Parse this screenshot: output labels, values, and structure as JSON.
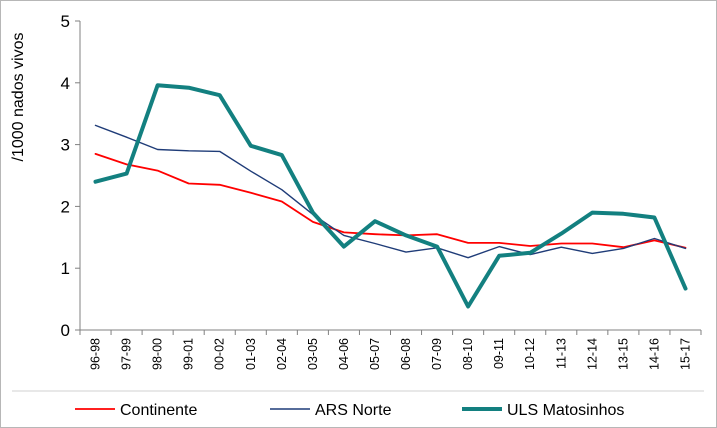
{
  "chart_data": {
    "type": "line",
    "title": "",
    "xlabel": "",
    "ylabel": "/1000 nados vivos",
    "ylim": [
      0,
      5
    ],
    "yticks": [
      0,
      1,
      2,
      3,
      4,
      5
    ],
    "grid": false,
    "legend_position": "bottom",
    "categories": [
      "96-98",
      "97-99",
      "98-00",
      "99-01",
      "00-02",
      "01-03",
      "02-04",
      "03-05",
      "04-06",
      "05-07",
      "06-08",
      "07-09",
      "08-10",
      "09-11",
      "10-12",
      "11-13",
      "12-14",
      "13-15",
      "14-16",
      "15-17"
    ],
    "series": [
      {
        "name": "Continente",
        "color": "#ff0000",
        "line_width": 1.8,
        "values": [
          2.85,
          2.68,
          2.58,
          2.37,
          2.35,
          2.22,
          2.08,
          1.75,
          1.58,
          1.55,
          1.53,
          1.55,
          1.41,
          1.41,
          1.36,
          1.4,
          1.4,
          1.34,
          1.45,
          1.33
        ]
      },
      {
        "name": "ARS Norte",
        "color": "#1f3c78",
        "line_width": 1.4,
        "values": [
          3.31,
          3.12,
          2.92,
          2.9,
          2.89,
          2.57,
          2.27,
          1.87,
          1.53,
          1.4,
          1.26,
          1.33,
          1.17,
          1.35,
          1.22,
          1.34,
          1.24,
          1.32,
          1.48,
          1.32
        ]
      },
      {
        "name": "ULS Matosinhos",
        "color": "#138080",
        "line_width": 4,
        "values": [
          2.4,
          2.53,
          3.96,
          3.92,
          3.8,
          2.98,
          2.83,
          1.9,
          1.35,
          1.76,
          1.53,
          1.35,
          0.38,
          1.2,
          1.25,
          1.56,
          1.9,
          1.88,
          1.82,
          0.67
        ]
      }
    ]
  }
}
